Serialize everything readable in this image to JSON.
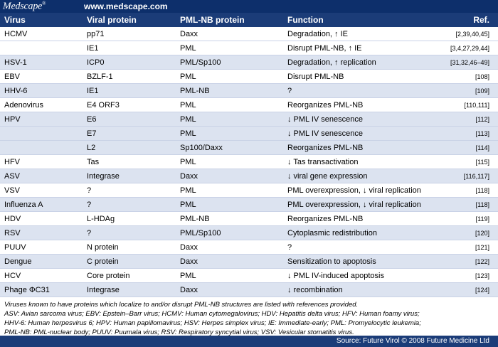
{
  "header": {
    "logo": "Medscape",
    "logo_mark": "®",
    "site": "www.medscape.com"
  },
  "columns": {
    "virus": "Virus",
    "protein": "Viral protein",
    "pml": "PML-NB protein",
    "function": "Function",
    "ref": "Ref."
  },
  "rows": [
    {
      "virus": "HCMV",
      "protein": "pp71",
      "pml": "Daxx",
      "function": "Degradation, ↑ IE",
      "ref": "[2,39,40,45]",
      "shade": false
    },
    {
      "virus": "",
      "protein": "IE1",
      "pml": "PML",
      "function": "Disrupt PML-NB, ↑ IE",
      "ref": "[3,4,27,29,44]",
      "shade": false
    },
    {
      "virus": "HSV-1",
      "protein": "ICP0",
      "pml": "PML/Sp100",
      "function": "Degradation, ↑ replication",
      "ref": "[31,32,46–49]",
      "shade": true
    },
    {
      "virus": "EBV",
      "protein": "BZLF-1",
      "pml": "PML",
      "function": "Disrupt PML-NB",
      "ref": "[108]",
      "shade": false
    },
    {
      "virus": "HHV-6",
      "protein": "IE1",
      "pml": "PML-NB",
      "function": "?",
      "ref": "[109]",
      "shade": true
    },
    {
      "virus": "Adenovirus",
      "protein": "E4 ORF3",
      "pml": "PML",
      "function": "Reorganizes PML-NB",
      "ref": "[110,111]",
      "shade": false
    },
    {
      "virus": "HPV",
      "protein": "E6",
      "pml": "PML",
      "function": "↓ PML IV senescence",
      "ref": "[112]",
      "shade": true
    },
    {
      "virus": "",
      "protein": "E7",
      "pml": "PML",
      "function": "↓ PML IV senescence",
      "ref": "[113]",
      "shade": true
    },
    {
      "virus": "",
      "protein": "L2",
      "pml": "Sp100/Daxx",
      "function": "Reorganizes PML-NB",
      "ref": "[114]",
      "shade": true
    },
    {
      "virus": "HFV",
      "protein": "Tas",
      "pml": "PML",
      "function": "↓ Tas transactivation",
      "ref": "[115]",
      "shade": false
    },
    {
      "virus": "ASV",
      "protein": "Integrase",
      "pml": "Daxx",
      "function": "↓ viral gene expression",
      "ref": "[116,117]",
      "shade": true
    },
    {
      "virus": "VSV",
      "protein": "?",
      "pml": "PML",
      "function": "PML overexpression, ↓ viral replication",
      "ref": "[118]",
      "shade": false
    },
    {
      "virus": "Influenza A",
      "protein": "?",
      "pml": "PML",
      "function": "PML overexpression, ↓ viral replication",
      "ref": "[118]",
      "shade": true
    },
    {
      "virus": "HDV",
      "protein": "L-HDAg",
      "pml": "PML-NB",
      "function": "Reorganizes PML-NB",
      "ref": "[119]",
      "shade": false
    },
    {
      "virus": "RSV",
      "protein": "?",
      "pml": "PML/Sp100",
      "function": "Cytoplasmic redistribution",
      "ref": "[120]",
      "shade": true
    },
    {
      "virus": "PUUV",
      "protein": "N protein",
      "pml": "Daxx",
      "function": "?",
      "ref": "[121]",
      "shade": false
    },
    {
      "virus": "Dengue",
      "protein": "C protein",
      "pml": "Daxx",
      "function": "Sensitization to apoptosis",
      "ref": "[122]",
      "shade": true
    },
    {
      "virus": "HCV",
      "protein": "Core protein",
      "pml": "PML",
      "function": "↓ PML IV-induced apoptosis",
      "ref": "[123]",
      "shade": false
    },
    {
      "virus": "Phage ΦC31",
      "protein": "Integrase",
      "pml": "Daxx",
      "function": "↓ recombination",
      "ref": "[124]",
      "shade": true
    }
  ],
  "notes": [
    "Viruses known to have proteins which localize to and/or disrupt PML-NB structures are listed with references provided.",
    "ASV: Avian sarcoma virus; EBV: Epstein–Barr virus; HCMV: Human cytomegalovirus; HDV: Hepatitis delta virus; HFV: Human foamy virus;",
    "HHV-6: Human herpesvirus 6; HPV: Human papillomavirus; HSV: Herpes simplex virus; IE: Immediate-early; PML: Promyelocytic leukemia;",
    "PML-NB: PML-nuclear body; PUUV: Puumala virus; RSV: Respiratory syncytial virus; VSV: Vesicular stomatitis virus."
  ],
  "footer": "Source: Future Virol © 2008 Future Medicine Ltd",
  "colors": {
    "bar_dark": "#0d2f6b",
    "bar": "#1b3c78",
    "row_shade": "#dce3f0"
  }
}
